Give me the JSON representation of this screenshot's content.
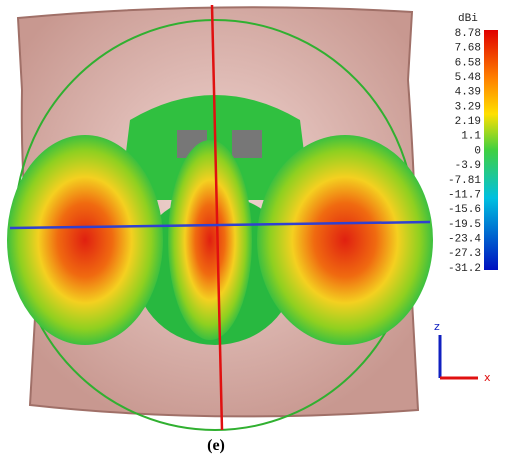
{
  "colorbar": {
    "unit": "dBi",
    "labels": [
      "8.78",
      "7.68",
      "6.58",
      "5.48",
      "4.39",
      "3.29",
      "2.19",
      "1.1",
      "0",
      "-3.9",
      "-7.81",
      "-11.7",
      "-15.6",
      "-19.5",
      "-23.4",
      "-27.3",
      "-31.2"
    ]
  },
  "axes": {
    "z": "z",
    "x": "x"
  },
  "caption": "(e)"
}
